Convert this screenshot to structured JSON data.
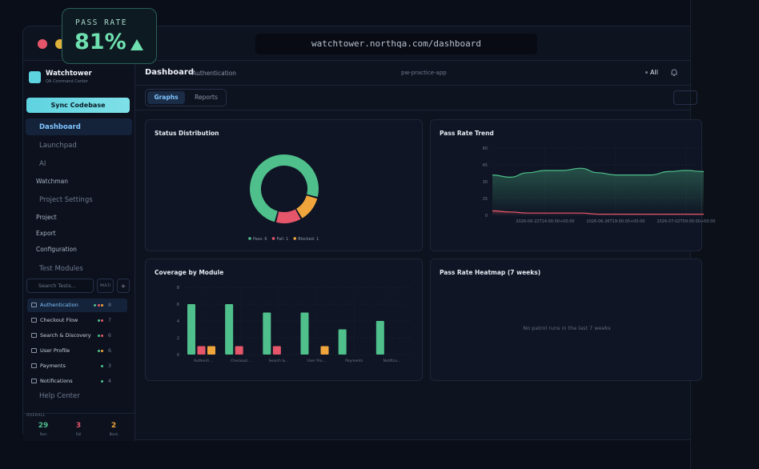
{
  "badge": {
    "label": "PASS RATE",
    "value": "81%"
  },
  "url": "watchtower.northqa.com/dashboard",
  "sidebar": {
    "brand": "Watchtower",
    "tagline": "QA Command Center",
    "sync": "Sync Codebase",
    "nav": [
      "Dashboard",
      "Launchpad",
      "AI",
      "Watchman",
      "Project Settings",
      "Project",
      "Export",
      "Configuration",
      "Test Modules"
    ],
    "search": "Search Tests...",
    "multi": "MULTI",
    "add": "+",
    "modules": [
      {
        "name": "Authentication",
        "count": "8"
      },
      {
        "name": "Checkout Flow",
        "count": "7"
      },
      {
        "name": "Search & Discovery",
        "count": "6"
      },
      {
        "name": "User Profile",
        "count": "6"
      },
      {
        "name": "Payments",
        "count": "3"
      },
      {
        "name": "Notifications",
        "count": "4"
      }
    ],
    "help": "Help Center",
    "overall": {
      "label": "OVERALL",
      "stats": [
        {
          "value": "29",
          "label": "Pass"
        },
        {
          "value": "3",
          "label": "Fail"
        },
        {
          "value": "2",
          "label": "Block"
        }
      ]
    }
  },
  "header": {
    "title": "Dashboard",
    "crumb": "Authentication",
    "project": "pw-practice-app",
    "filter": "All"
  },
  "tabs": [
    "Graphs",
    "Reports"
  ],
  "heatmap": {
    "title": "Pass Rate Heatmap (7 weeks)",
    "empty": "No patrol runs in the last 7 weeks"
  },
  "chart_data": [
    {
      "type": "pie",
      "title": "Status Distribution",
      "values": [
        6,
        1,
        1
      ],
      "value_labels": [
        "Pass: 6",
        "Fail: 1",
        "Blocked: 1"
      ],
      "colors": [
        "#4fbf8b",
        "#e5566a",
        "#f0a53c"
      ]
    },
    {
      "type": "line",
      "title": "Pass Rate Trend",
      "categories": [
        null,
        null,
        null,
        "2026-06-22T14:00:00+00:00",
        null,
        null,
        null,
        "2026-06-26T19:00:00+00:00",
        null,
        null,
        null,
        "2026-07-02T09:00:00+00:00",
        null
      ],
      "series": [
        {
          "color": "#4fbf8b",
          "values": [
            36,
            34,
            38,
            40,
            40,
            42,
            38,
            36,
            36,
            36,
            39,
            40,
            39
          ]
        },
        {
          "color": "#e5566a",
          "values": [
            4,
            3,
            2,
            2,
            2,
            2,
            1,
            1,
            1,
            1,
            1,
            1,
            1
          ]
        }
      ],
      "ylim": [
        0,
        60
      ],
      "yticks": [
        0,
        15,
        30,
        45,
        60
      ],
      "grid": true
    },
    {
      "type": "bar",
      "title": "Coverage by Module",
      "categories": [
        "Authenti...",
        "Checkout...",
        "Search &...",
        "User Pro...",
        "Payments",
        "Notifica..."
      ],
      "series": [
        {
          "color": "#4fbf8b",
          "values": [
            6,
            6,
            5,
            5,
            3,
            4
          ]
        },
        {
          "color": "#e5566a",
          "values": [
            1,
            1,
            1,
            0,
            0,
            0
          ]
        },
        {
          "color": "#f0a53c",
          "values": [
            1,
            0,
            0,
            1,
            0,
            0
          ]
        }
      ],
      "ylim": [
        0,
        8
      ],
      "yticks": [
        0,
        2,
        4,
        6,
        8
      ],
      "grid": true
    }
  ]
}
